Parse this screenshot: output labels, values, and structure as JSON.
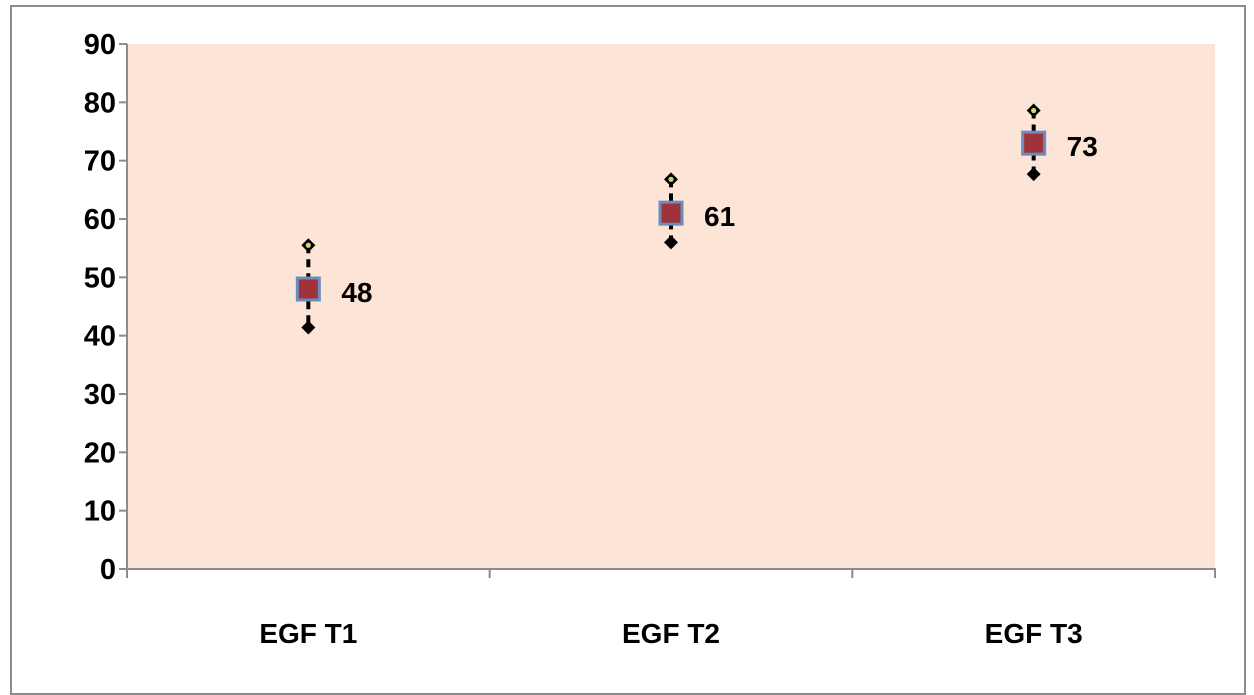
{
  "chart_data": {
    "type": "scatter",
    "categories": [
      "EGF T1",
      "EGF T2",
      "EGF T3"
    ],
    "ylim": [
      0,
      90
    ],
    "yticks": [
      0,
      10,
      20,
      30,
      40,
      50,
      60,
      70,
      80,
      90
    ],
    "grid": false,
    "legend": "none",
    "series": [
      {
        "role": "mean",
        "values": [
          48,
          61,
          73
        ],
        "data_labels": [
          "48",
          "61",
          "73"
        ],
        "marker": "square",
        "color": "#a0333a",
        "edge_color": "#6a8cc0"
      },
      {
        "role": "upper",
        "values": [
          55.5,
          66.8,
          78.6
        ],
        "marker": "diamond",
        "color": "#000000"
      },
      {
        "role": "lower",
        "values": [
          41.4,
          56,
          67.7
        ],
        "marker": "diamond",
        "color": "#000000"
      }
    ],
    "colors": {
      "plot_background": "#fce4d6",
      "axis": "#8c8c8c",
      "upper_marker_center": "#c8d96a"
    }
  }
}
